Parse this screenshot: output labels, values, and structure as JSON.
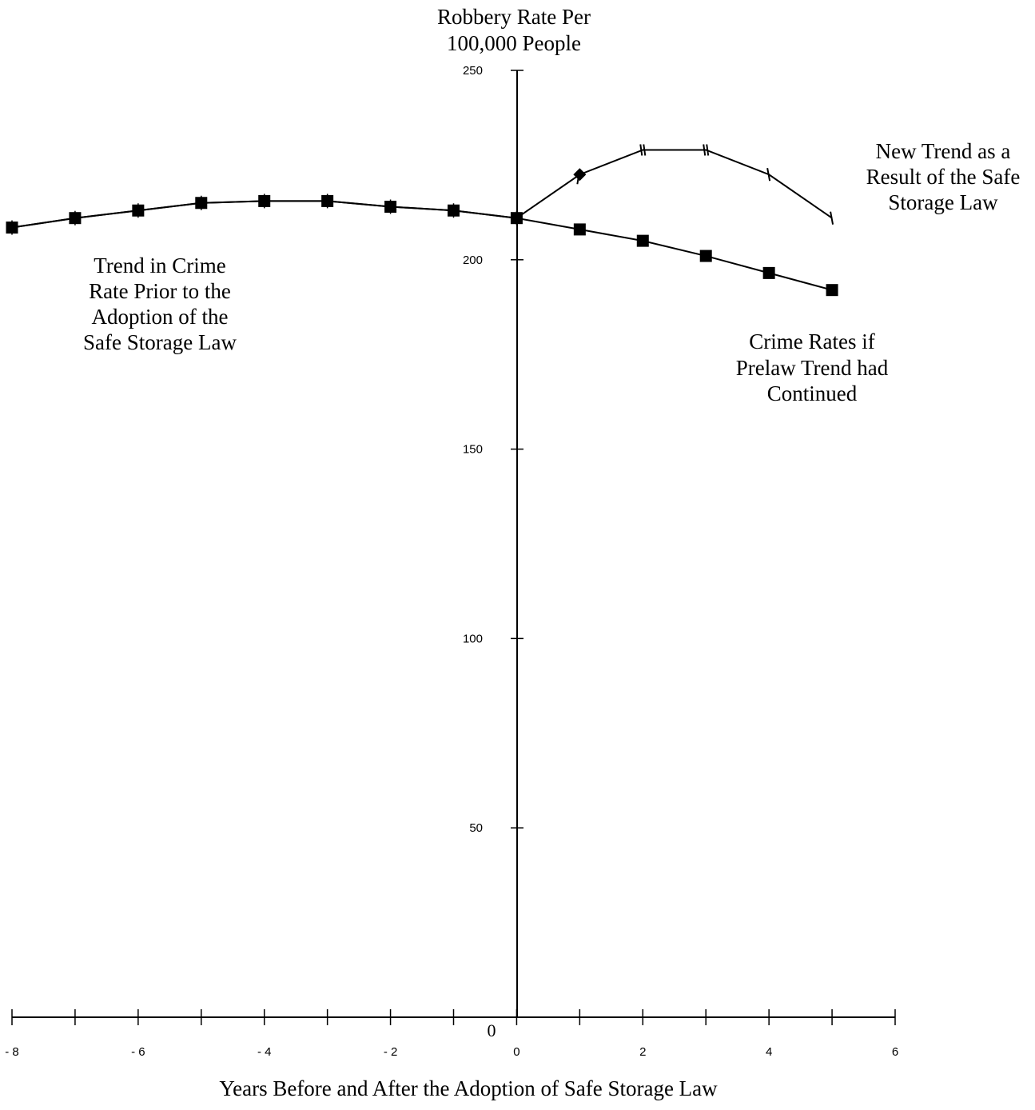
{
  "chart_data": {
    "type": "line",
    "ylabel_lines": [
      "Robbery Rate Per",
      "100,000 People"
    ],
    "xlabel": "Years Before and After the Adoption of Safe Storage Law",
    "xlim": [
      -8,
      6
    ],
    "ylim": [
      0,
      250
    ],
    "x_ticks": [
      -8,
      -7,
      -6,
      -5,
      -4,
      -3,
      -2,
      -1,
      0,
      1,
      2,
      3,
      4,
      5,
      6
    ],
    "x_tick_labels": [
      {
        "x": -8,
        "label": "- 8"
      },
      {
        "x": -6,
        "label": "- 6"
      },
      {
        "x": -4,
        "label": "- 4"
      },
      {
        "x": -2,
        "label": "- 2"
      },
      {
        "x": 0,
        "label": "0"
      },
      {
        "x": 2,
        "label": "2"
      },
      {
        "x": 4,
        "label": "4"
      },
      {
        "x": 6,
        "label": "6"
      }
    ],
    "y_ticks": [
      0,
      50,
      100,
      150,
      200,
      250
    ],
    "y_tick_labels": [
      {
        "y": 0,
        "label": "0"
      },
      {
        "y": 50,
        "label": "50"
      },
      {
        "y": 100,
        "label": "100"
      },
      {
        "y": 150,
        "label": "150"
      },
      {
        "y": 200,
        "label": "200"
      },
      {
        "y": 250,
        "label": "250"
      }
    ],
    "grid": false,
    "series": [
      {
        "marker": "square",
        "x": [
          -8,
          -7,
          -6,
          -5,
          -4,
          -3,
          -2,
          -1,
          0,
          1,
          2,
          3,
          4,
          5
        ],
        "values": [
          208.5,
          211,
          213,
          215,
          215.5,
          215.5,
          214,
          213,
          211,
          208,
          205,
          201,
          196.5,
          192
        ]
      },
      {
        "marker": "tick",
        "x": [
          -8,
          -7,
          -6,
          -5,
          -4,
          -3,
          -2,
          -1,
          0,
          1,
          2,
          3,
          4,
          5
        ],
        "values": [
          208.5,
          211,
          213,
          215,
          215.5,
          215.5,
          214,
          213,
          211,
          222.5,
          229,
          229,
          222.5,
          211
        ]
      }
    ],
    "annotations": [
      {
        "id": "prior",
        "lines": [
          "Trend in Crime",
          "Rate Prior to the",
          "Adoption of the",
          "Safe Storage Law"
        ]
      },
      {
        "id": "new",
        "lines": [
          "New Trend as a",
          "Result of the Safe",
          "Storage Law"
        ]
      },
      {
        "id": "continued",
        "lines": [
          "Crime Rates  if",
          "Prelaw Trend had",
          "Continued"
        ]
      }
    ]
  }
}
